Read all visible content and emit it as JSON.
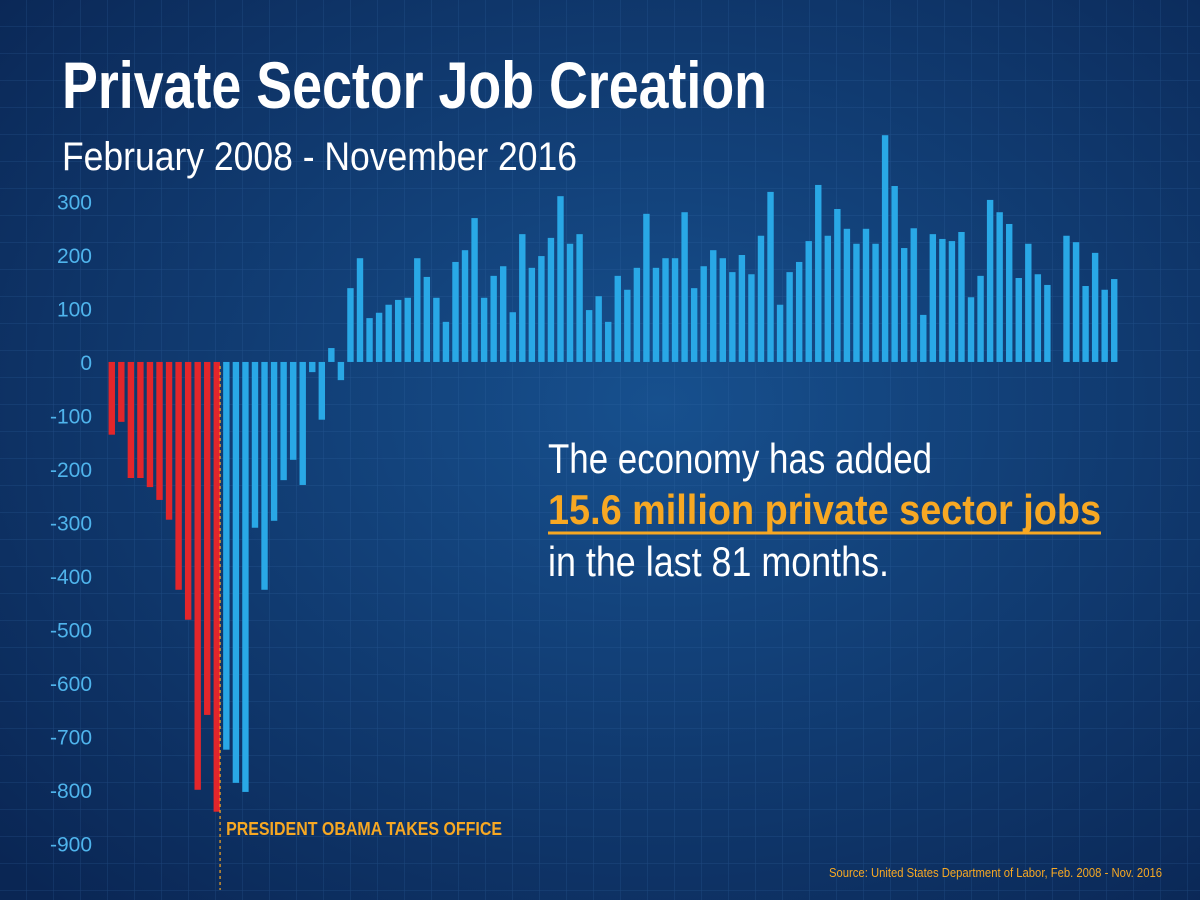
{
  "chart_data": {
    "type": "bar",
    "title": "Private Sector Job Creation",
    "subtitle": "February 2008 - November 2016",
    "annotation": "PRESIDENT OBAMA TAKES OFFICE",
    "callout": [
      "The economy has added",
      "15.6 million private sector jobs",
      "in the last 81 months."
    ],
    "source": "Source: United States Department of Labor,  Feb. 2008 - Nov. 2016",
    "ylim": [
      -950,
      430
    ],
    "yticks": [
      300,
      200,
      100,
      0,
      -100,
      -200,
      -300,
      -400,
      -500,
      -600,
      -700,
      -800,
      -900
    ],
    "series": [
      {
        "color": "#e3262b",
        "values": [
          -136,
          -112,
          -217,
          -217,
          -234,
          -258,
          -295,
          -426,
          -482,
          -800,
          -660,
          -841,
          null,
          null,
          null,
          null,
          null,
          null,
          null,
          null,
          null,
          null,
          null,
          null,
          null,
          null,
          null,
          null,
          null,
          null,
          null,
          null,
          null,
          null,
          null,
          null,
          null,
          null,
          null,
          null,
          null,
          null,
          null,
          null,
          null,
          null,
          null,
          null,
          null,
          null,
          null,
          null,
          null,
          null,
          null,
          null,
          null,
          null,
          null,
          null,
          null,
          null,
          null,
          null,
          null,
          null,
          null,
          null,
          null,
          null,
          null,
          null,
          null,
          null,
          null,
          null,
          null,
          null,
          null,
          null,
          null,
          null,
          null,
          null,
          null,
          null,
          null,
          null,
          null,
          null,
          null,
          null,
          null,
          null,
          null,
          null,
          null,
          null,
          null,
          null,
          null,
          null,
          null,
          null,
          null,
          null
        ]
      },
      {
        "color": "#29a8e6",
        "values": [
          null,
          null,
          null,
          null,
          null,
          null,
          null,
          null,
          null,
          null,
          null,
          null,
          -725,
          -787,
          -804,
          -310,
          -426,
          -297,
          -221,
          -183,
          -230,
          -19,
          -108,
          26,
          -34,
          138,
          194,
          82,
          92,
          107,
          116,
          120,
          194,
          159,
          120,
          75,
          187,
          209,
          269,
          120,
          161,
          179,
          93,
          239,
          176,
          198,
          232,
          310,
          221,
          239,
          97,
          123,
          75,
          161,
          135,
          176,
          277,
          176,
          194,
          194,
          280,
          138,
          179,
          209,
          194,
          168,
          200,
          164,
          236,
          318,
          107,
          168,
          187,
          226,
          331,
          236,
          286,
          249,
          221,
          249,
          221,
          424,
          329,
          213,
          250,
          88,
          239,
          230,
          226,
          243,
          121,
          161,
          303,
          280,
          258,
          157,
          221,
          164,
          144,
          null,
          236,
          224,
          142,
          204,
          135,
          155
        ]
      }
    ]
  }
}
